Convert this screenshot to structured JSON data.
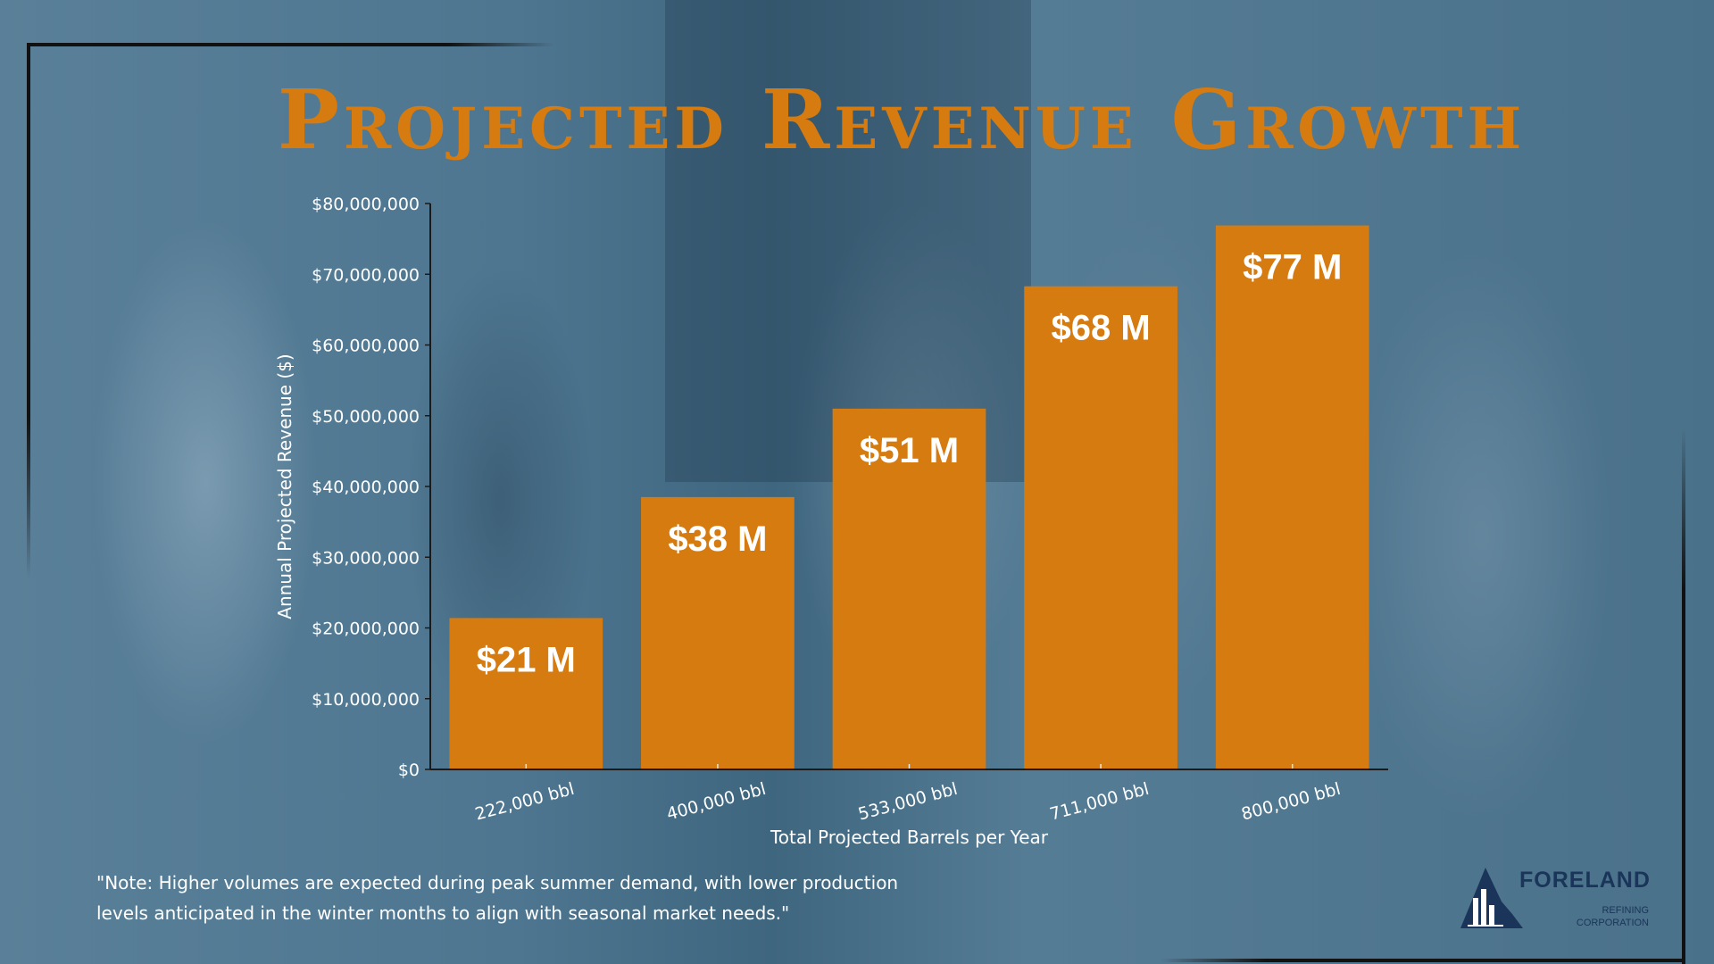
{
  "title": "Projected Revenue Growth",
  "note": "\"Note: Higher volumes are expected during peak summer demand, with lower production levels anticipated in the winter months to align with seasonal market needs.\"",
  "logo": {
    "name": "FORELAND",
    "line1": "REFINING",
    "line2": "CORPORATION"
  },
  "colors": {
    "bar": "#d67b10",
    "title": "#d67b10",
    "axis": "#1a1a1a",
    "text": "#ffffff"
  },
  "chart_data": {
    "type": "bar",
    "categories": [
      "222,000 bbl",
      "400,000 bbl",
      "533,000 bbl",
      "711,000 bbl",
      "800,000 bbl"
    ],
    "values": [
      21400000,
      38500000,
      51000000,
      68300000,
      76900000
    ],
    "data_labels": [
      "$21 M",
      "$38 M",
      "$51 M",
      "$68 M",
      "$77 M"
    ],
    "xlabel": "Total Projected Barrels per Year",
    "ylabel": "Annual Projected Revenue ($)",
    "ylim": [
      0,
      80000000
    ],
    "yticks": [
      0,
      10000000,
      20000000,
      30000000,
      40000000,
      50000000,
      60000000,
      70000000,
      80000000
    ],
    "ytick_labels": [
      "$0",
      "$10,000,000",
      "$20,000,000",
      "$30,000,000",
      "$40,000,000",
      "$50,000,000",
      "$60,000,000",
      "$70,000,000",
      "$80,000,000"
    ],
    "grid": false,
    "legend": "none"
  }
}
